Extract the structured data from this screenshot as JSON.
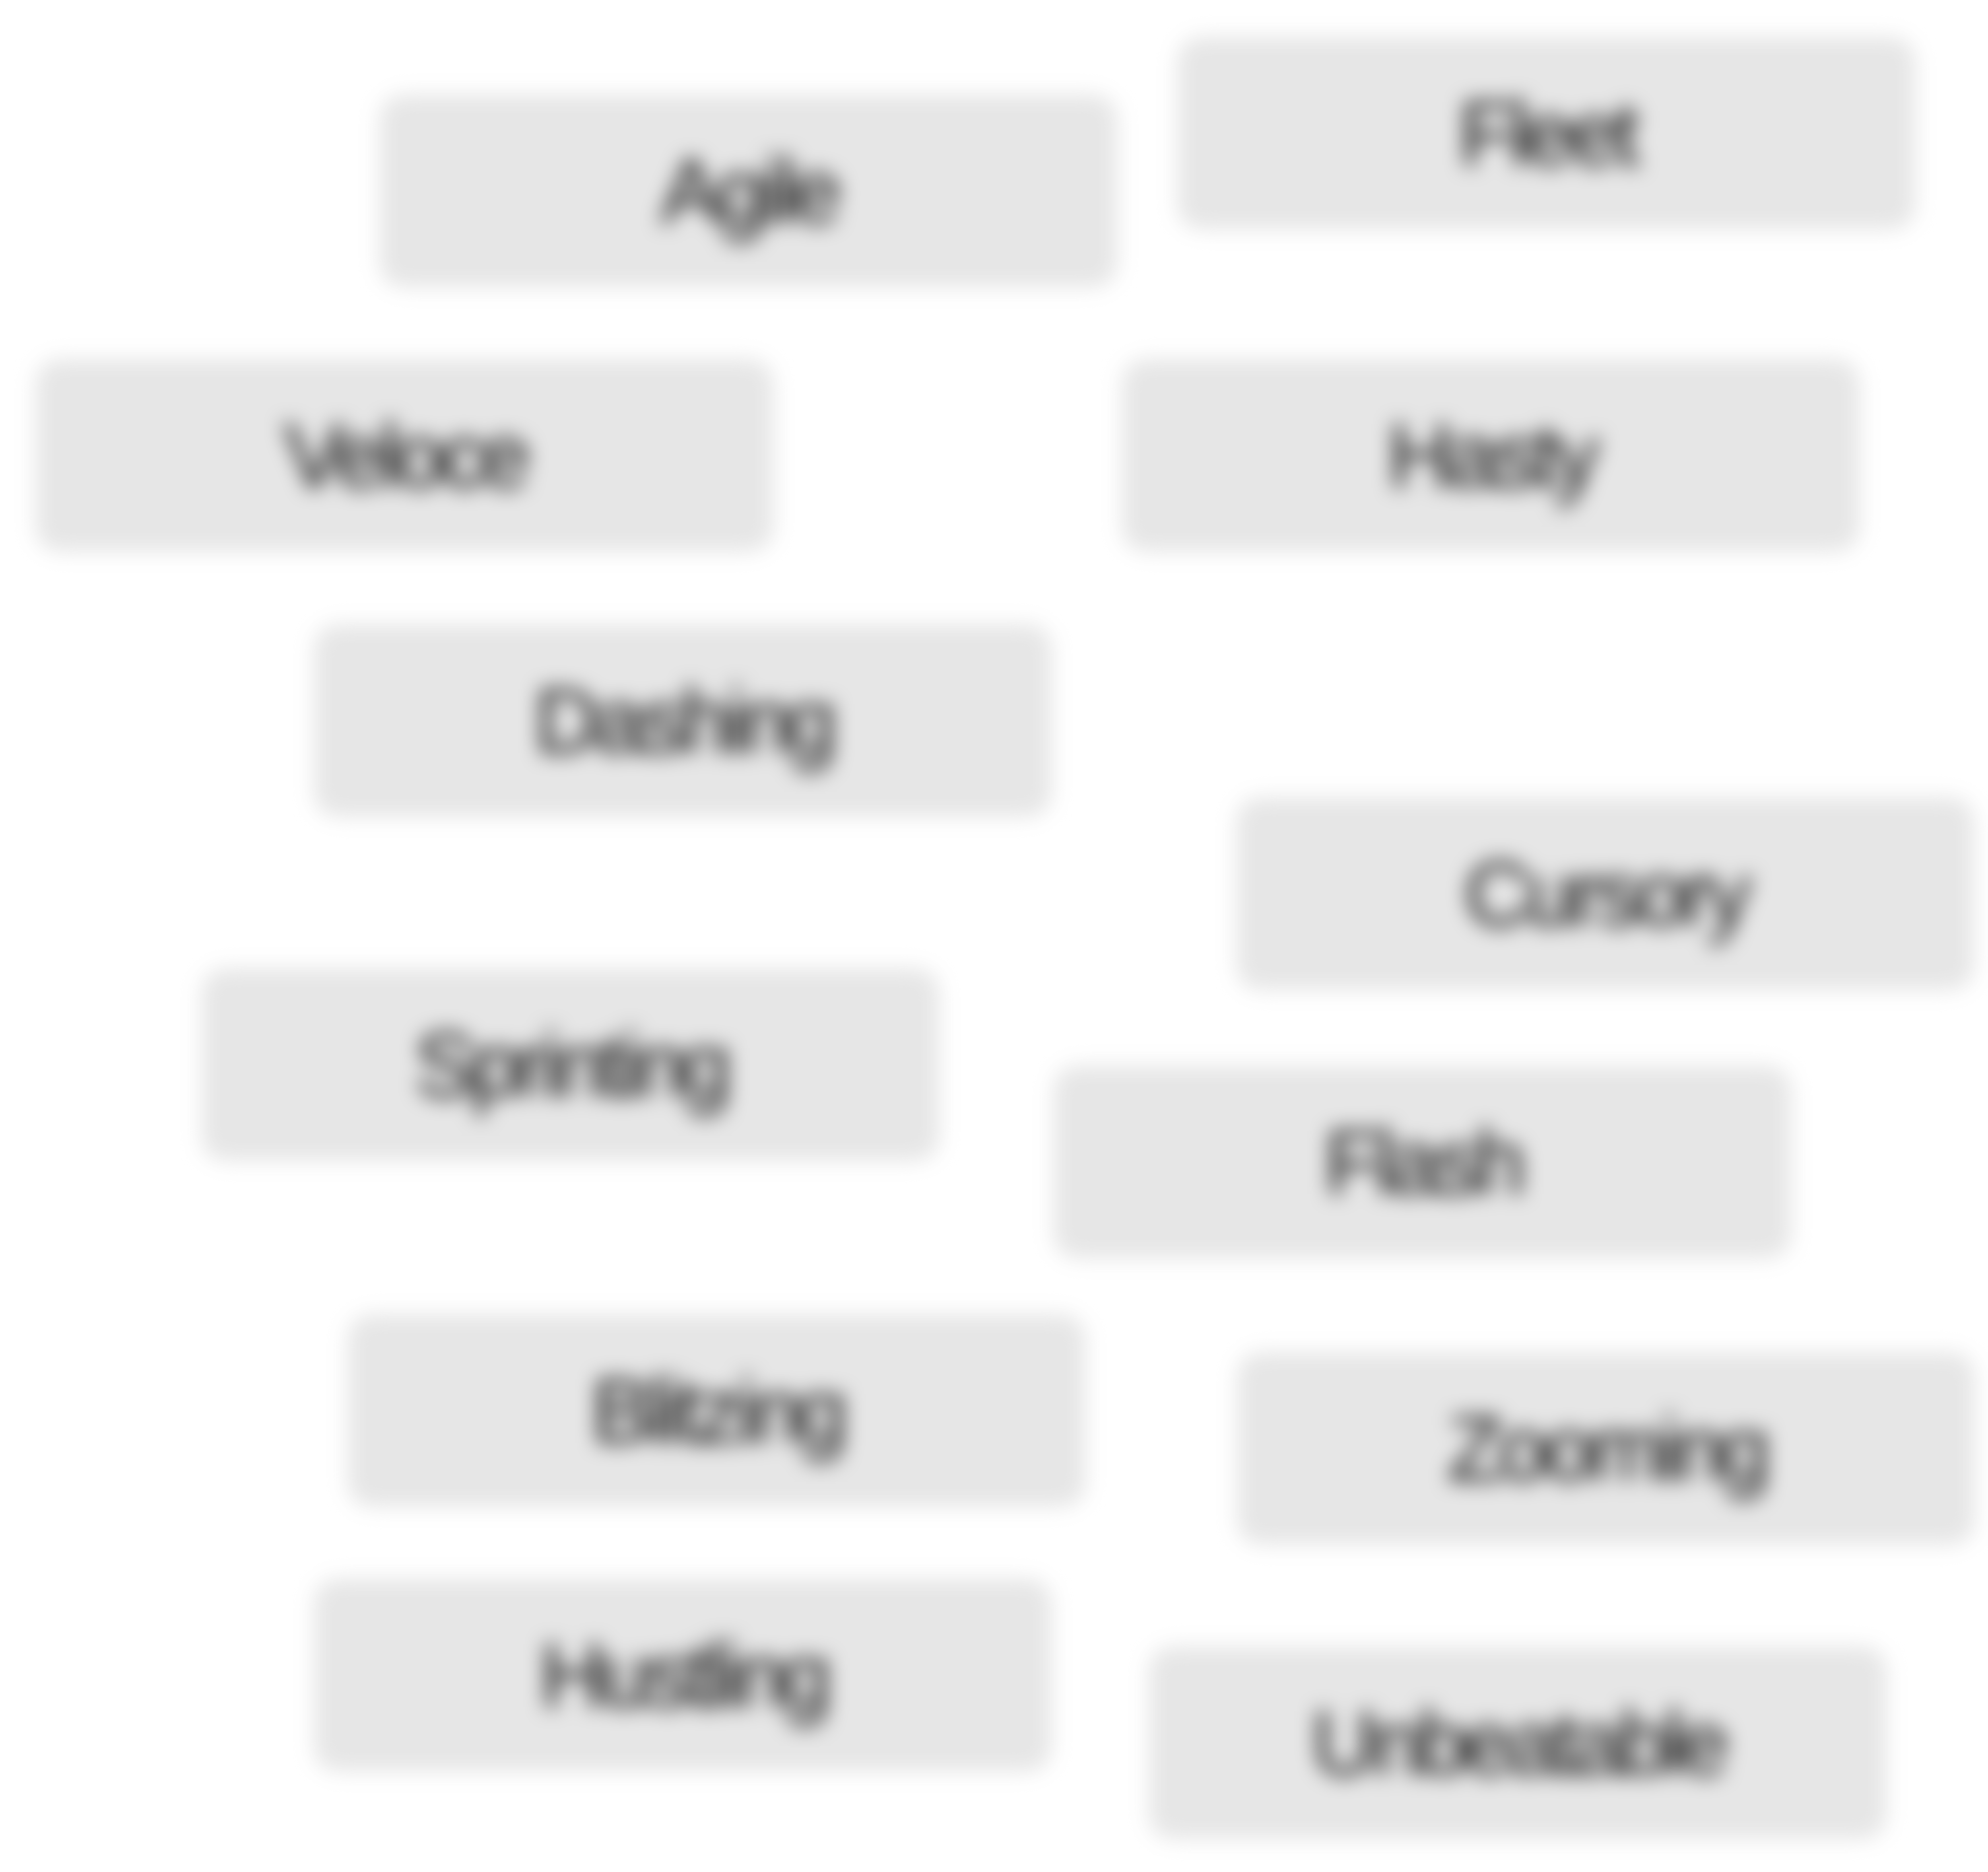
{
  "chips": {
    "agile": "Agile",
    "fleet": "Fleet",
    "veloce": "Veloce",
    "hasty": "Hasty",
    "dashing": "Dashing",
    "cursory": "Cursory",
    "sprinting": "Sprinting",
    "flash": "Flash",
    "blitzing": "Blitzing",
    "zooming": "Zooming",
    "hustling": "Hustling",
    "unbeatable": "Unbeatable"
  },
  "colors": {
    "chip_background": "#e6e6e6",
    "chip_text": "#111111",
    "page_background": "#ffffff"
  }
}
